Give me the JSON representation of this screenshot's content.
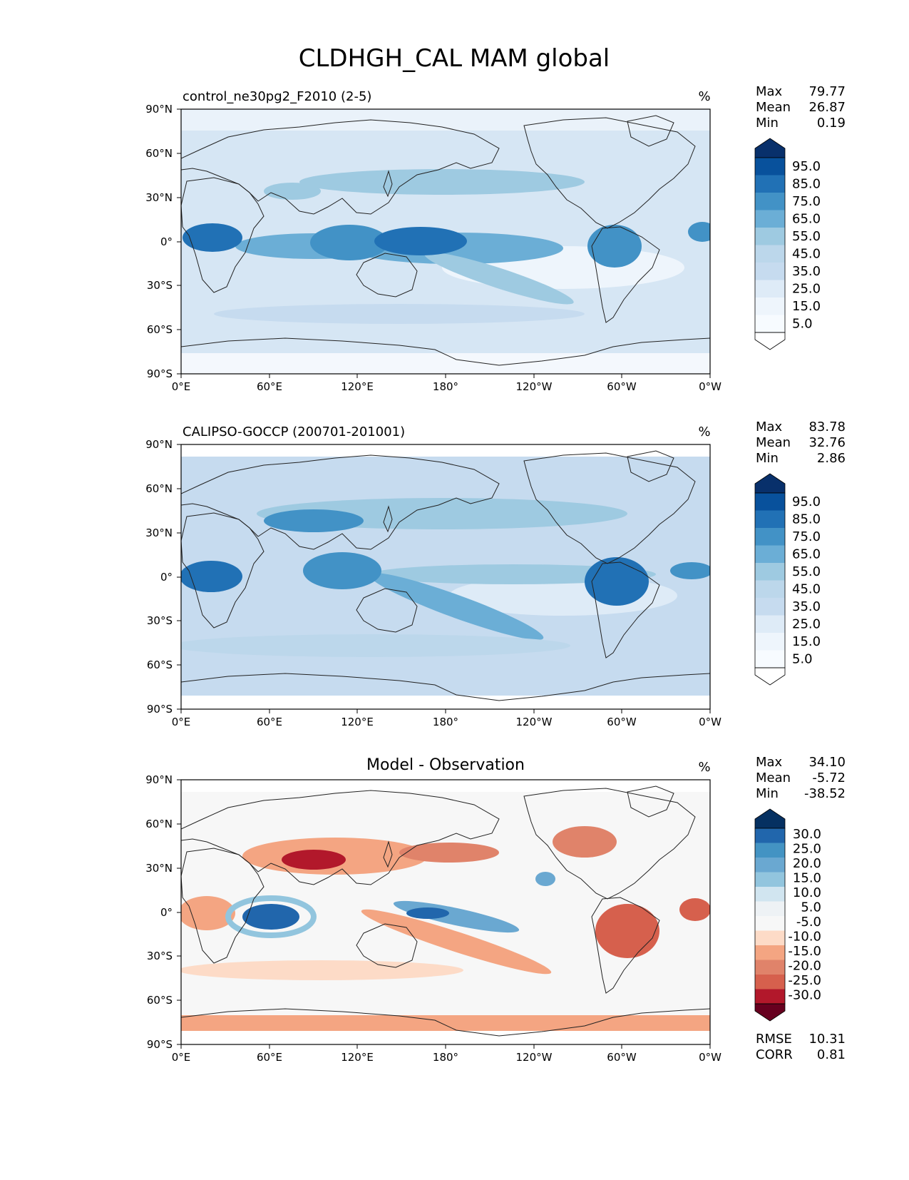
{
  "figure": {
    "title": "CLDHGH_CAL MAM global"
  },
  "chart_data": [
    {
      "type": "heatmap",
      "panel_title": "control_ne30pg2_F2010 (2-5)",
      "units": "%",
      "stats": {
        "max_label": "Max",
        "max": "79.77",
        "mean_label": "Mean",
        "mean": "26.87",
        "min_label": "Min",
        "min": "0.19"
      },
      "x_ticks": [
        "0°E",
        "60°E",
        "120°E",
        "180°",
        "120°W",
        "60°W",
        "0°W"
      ],
      "y_ticks": [
        "90°N",
        "60°N",
        "30°N",
        "0°",
        "30°S",
        "60°S",
        "90°S"
      ],
      "xlim": [
        0,
        360
      ],
      "ylim": [
        -90,
        90
      ],
      "colorbar": {
        "labels": [
          "95.0",
          "85.0",
          "75.0",
          "65.0",
          "55.0",
          "45.0",
          "35.0",
          "25.0",
          "15.0",
          "5.0"
        ],
        "colors": [
          "#08306b",
          "#08519c",
          "#2171b5",
          "#4292c6",
          "#6baed6",
          "#9ecae1",
          "#bcd7eb",
          "#c6dbef",
          "#deebf7",
          "#f7fbff",
          "#ffffff"
        ]
      }
    },
    {
      "type": "heatmap",
      "panel_title": "CALIPSO-GOCCP (200701-201001)",
      "units": "%",
      "stats": {
        "max_label": "Max",
        "max": "83.78",
        "mean_label": "Mean",
        "mean": "32.76",
        "min_label": "Min",
        "min": "2.86"
      },
      "x_ticks": [
        "0°E",
        "60°E",
        "120°E",
        "180°",
        "120°W",
        "60°W",
        "0°W"
      ],
      "y_ticks": [
        "90°N",
        "60°N",
        "30°N",
        "0°",
        "30°S",
        "60°S",
        "90°S"
      ],
      "xlim": [
        0,
        360
      ],
      "ylim": [
        -90,
        90
      ],
      "colorbar": {
        "labels": [
          "95.0",
          "85.0",
          "75.0",
          "65.0",
          "55.0",
          "45.0",
          "35.0",
          "25.0",
          "15.0",
          "5.0"
        ],
        "colors": [
          "#08306b",
          "#08519c",
          "#2171b5",
          "#4292c6",
          "#6baed6",
          "#9ecae1",
          "#bcd7eb",
          "#c6dbef",
          "#deebf7",
          "#f7fbff",
          "#ffffff"
        ]
      }
    },
    {
      "type": "heatmap",
      "panel_title": "Model - Observation",
      "units": "%",
      "stats": {
        "max_label": "Max",
        "max": "34.10",
        "mean_label": "Mean",
        "mean": "-5.72",
        "min_label": "Min",
        "min": "-38.52"
      },
      "metrics": {
        "rmse_label": "RMSE",
        "rmse": "10.31",
        "corr_label": "CORR",
        "corr": "0.81"
      },
      "x_ticks": [
        "0°E",
        "60°E",
        "120°E",
        "180°",
        "120°W",
        "60°W",
        "0°W"
      ],
      "y_ticks": [
        "90°N",
        "60°N",
        "30°N",
        "0°",
        "30°S",
        "60°S",
        "90°S"
      ],
      "xlim": [
        0,
        360
      ],
      "ylim": [
        -90,
        90
      ],
      "colorbar": {
        "labels": [
          "30.0",
          "25.0",
          "20.0",
          "15.0",
          "10.0",
          "5.0",
          "-5.0",
          "-10.0",
          "-15.0",
          "-20.0",
          "-25.0",
          "-30.0"
        ],
        "colors": [
          "#053061",
          "#2166ac",
          "#4393c3",
          "#6aa8d1",
          "#92c5de",
          "#d1e5f0",
          "#f7f7f7",
          "#fddbc7",
          "#f4a582",
          "#e0836a",
          "#d6604d",
          "#b2182b",
          "#8b0a1e",
          "#67001f"
        ]
      }
    }
  ]
}
